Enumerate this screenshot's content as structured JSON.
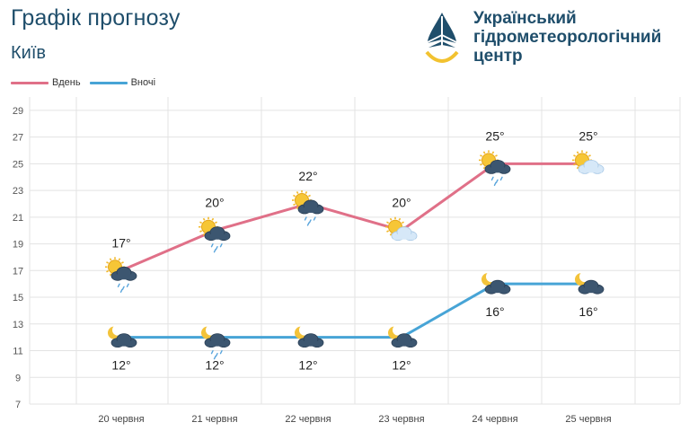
{
  "header": {
    "title": "Графік прогнозу",
    "city": "Київ"
  },
  "logo": {
    "line1": "Український",
    "line2": "гідрометеорологічний",
    "line3": "центр"
  },
  "colors": {
    "day": "#e07088",
    "night": "#47a4d6",
    "grid": "#e3e3e3",
    "text": "#1f4e6b"
  },
  "chart_data": {
    "type": "line",
    "title": "Графік прогнозу",
    "categories": [
      "20 червня",
      "21 червня",
      "22 червня",
      "23 червня",
      "24 червня",
      "25 червня"
    ],
    "y_ticks": [
      7,
      9,
      11,
      13,
      15,
      17,
      19,
      21,
      23,
      25,
      27,
      29
    ],
    "ylim": [
      7,
      30
    ],
    "grid": true,
    "legend": "top-left",
    "series": [
      {
        "name": "Вдень",
        "values": [
          17,
          20,
          22,
          20,
          25,
          25
        ],
        "labels": [
          "17°",
          "20°",
          "22°",
          "20°",
          "25°",
          "25°"
        ],
        "icons": [
          "sun-cloud-rain-icon",
          "sun-cloud-rain-icon",
          "sun-cloud-rain-icon",
          "sun-cloud-icon",
          "sun-cloud-rain-icon",
          "sun-cloud-icon"
        ]
      },
      {
        "name": "Вночі",
        "values": [
          12,
          12,
          12,
          12,
          16,
          16
        ],
        "labels": [
          "12°",
          "12°",
          "12°",
          "12°",
          "16°",
          "16°"
        ],
        "icons": [
          "moon-cloud-icon",
          "moon-cloud-rain-icon",
          "moon-cloud-icon",
          "moon-cloud-icon",
          "moon-cloud-icon",
          "moon-cloud-icon"
        ]
      }
    ]
  }
}
